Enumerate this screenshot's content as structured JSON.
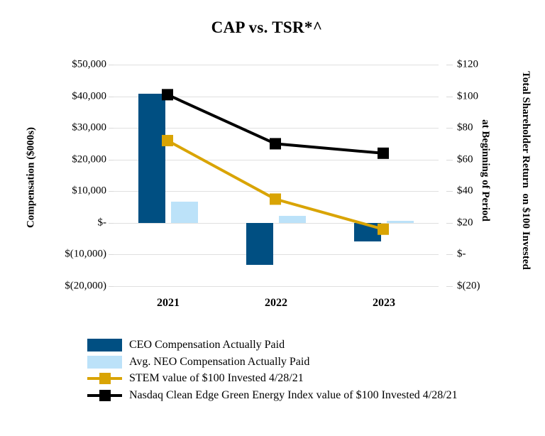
{
  "title": "CAP vs. TSR*^",
  "chart_data": {
    "type": "bar",
    "subtype": "combo-bar-line-dual-axis",
    "categories": [
      "2021",
      "2022",
      "2023"
    ],
    "series": [
      {
        "name": "CEO Compensation Actually Paid",
        "type": "bar",
        "axis": "left",
        "color": "#004F82",
        "values": [
          40700,
          -13300,
          -5900
        ]
      },
      {
        "name": "Avg. NEO Compensation Actually Paid",
        "type": "bar",
        "axis": "left",
        "color": "#BCE2F9",
        "values": [
          6700,
          2300,
          650
        ]
      },
      {
        "name": "STEM value of $100 Invested 4/28/21",
        "type": "line",
        "axis": "right",
        "color": "#D9A404",
        "values": [
          72,
          35,
          16
        ]
      },
      {
        "name": "Nasdaq Clean Edge Green Energy Index value of $100 Invested 4/28/21",
        "type": "line",
        "axis": "right",
        "color": "#000000",
        "values": [
          101,
          70,
          64
        ]
      }
    ],
    "left_axis": {
      "title": "Compensation ($000s)",
      "tick_labels": [
        "$50,000",
        "$40,000",
        "$30,000",
        "$20,000",
        "$10,000",
        "$-",
        "$(10,000)",
        "$(20,000)"
      ],
      "tick_values": [
        50000,
        40000,
        30000,
        20000,
        10000,
        0,
        -10000,
        -20000
      ],
      "min": -20000,
      "max": 50000
    },
    "right_axis": {
      "title_line1": "Total Shareholder Return  on $100 Invested",
      "title_line2": "at Beginning of Period",
      "tick_labels": [
        "$120",
        "$100",
        "$80",
        "$60",
        "$40",
        "$20",
        "$-",
        "$(20)"
      ],
      "tick_values": [
        120,
        100,
        80,
        60,
        40,
        20,
        0,
        -20
      ],
      "min": -20,
      "max": 120
    },
    "grid": true,
    "legend_position": "bottom"
  },
  "colors": {
    "ceo_bar": "#004F82",
    "neo_bar": "#BCE2F9",
    "stem_line": "#D9A404",
    "nasdaq_line": "#000000",
    "gridline": "#e0e0e0",
    "background": "#ffffff"
  }
}
